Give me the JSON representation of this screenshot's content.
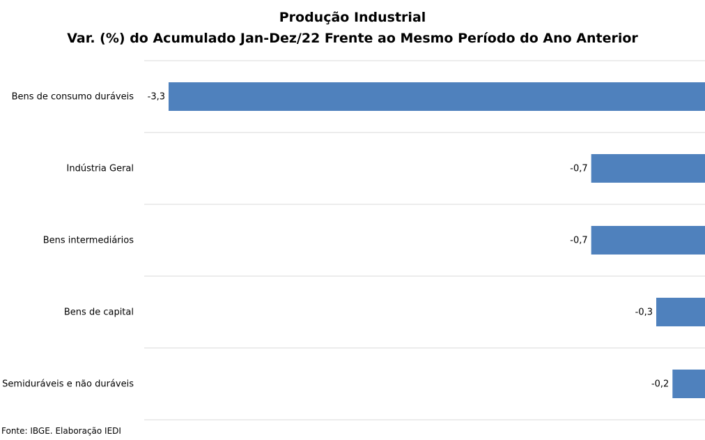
{
  "chart_data": {
    "type": "bar",
    "orientation": "horizontal",
    "title": "Produção Industrial",
    "subtitle": "Var. (%) do Acumulado Jan-Dez/22 Frente ao Mesmo Período do Ano Anterior",
    "categories": [
      "Bens de consumo duráveis",
      "Indústria Geral",
      "Bens intermediários",
      "Bens de capital",
      "Semiduráveis e não duráveis"
    ],
    "values": [
      -3.3,
      -0.7,
      -0.7,
      -0.3,
      -0.2
    ],
    "value_labels": [
      "-3,3",
      "-0,7",
      "-0,7",
      "-0,3",
      "-0,2"
    ],
    "xlim": [
      -3.3,
      0
    ],
    "grid": true,
    "bar_color": "#4f81bd",
    "grid_color": "#d9d9d9"
  },
  "footer": {
    "source": "Fonte: IBGE. Elaboração IEDI"
  }
}
